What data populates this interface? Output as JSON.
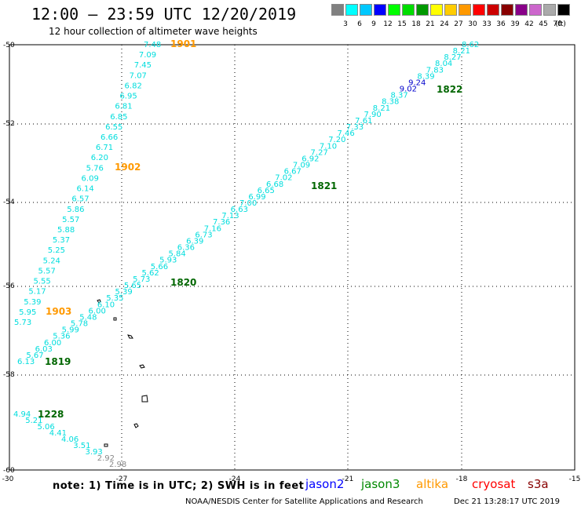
{
  "title": "12:00 – 23:59 UTC 12/20/2019",
  "subtitle": "12 hour collection of altimeter wave heights",
  "scale": {
    "unit": "(ft)",
    "colors": [
      "#808080",
      "#00ffff",
      "#00c8ff",
      "#0000ff",
      "#00ff00",
      "#00dd00",
      "#009900",
      "#ffff00",
      "#ffcc00",
      "#ff9900",
      "#ff0000",
      "#cc0000",
      "#880000",
      "#880088",
      "#cc66cc",
      "#aaaaaa",
      "#000000"
    ],
    "ticks": [
      "3",
      "6",
      "9",
      "12",
      "15",
      "18",
      "21",
      "24",
      "27",
      "30",
      "33",
      "36",
      "39",
      "42",
      "45",
      "70"
    ]
  },
  "axes": {
    "lon_ticks": [
      "-30",
      "-27",
      "-24",
      "-21",
      "-18",
      "-15"
    ],
    "lat_ticks": [
      "-50",
      "-52",
      "-54",
      "-56",
      "-58",
      "-60"
    ]
  },
  "tracks": [
    {
      "name": "1901",
      "label_color": "#ff9900",
      "color": "#00ffff",
      "values": [
        "7.48",
        "7.09",
        "7.45",
        "7.07",
        "6.82",
        "6.95",
        "6.81",
        "6.85",
        "6.55",
        "6.66",
        "6.71",
        "6.20",
        "5.76",
        "6.09",
        "6.14",
        "6.57",
        "5.86",
        "5.57",
        "5.88",
        "5.37",
        "5.25",
        "5.24",
        "5.57",
        "5.55",
        "5.17",
        "5.39",
        "5.95",
        "5.73"
      ]
    },
    {
      "name": "1822",
      "label_color": "#006600",
      "color": "#00ffff",
      "values": [
        "8.62",
        "8.21",
        "8.27",
        "8.04",
        "7.83",
        "8.39",
        "9.24",
        "9.02",
        "8.37",
        "8.38",
        "8.21",
        "7.90",
        "7.61",
        "7.33",
        "7.46",
        "7.20",
        "7.10",
        "7.27",
        "6.92",
        "7.09",
        "6.67",
        "7.02",
        "6.68",
        "6.65",
        "6.99",
        "7.00",
        "6.63",
        "7.13",
        "7.36",
        "7.16",
        "6.73",
        "6.39",
        "6.36",
        "5.84",
        "5.93",
        "5.66",
        "5.62",
        "5.73",
        "5.65",
        "5.39",
        "5.35",
        "6.10",
        "6.00",
        "5.48",
        "5.78",
        "5.99",
        "5.36",
        "6.00",
        "6.03",
        "5.67",
        "6.13"
      ]
    },
    {
      "name": "1228",
      "label_color": "#006600",
      "color": "#00ffff",
      "values": [
        "4.94",
        "5.21",
        "5.06",
        "4.41",
        "4.06",
        "3.51",
        "3.93",
        "2.92",
        "2.98"
      ]
    }
  ],
  "track_labels": [
    {
      "text": "1901",
      "color": "#ff9900"
    },
    {
      "text": "1902",
      "color": "#ff9900"
    },
    {
      "text": "1903",
      "color": "#ff9900"
    },
    {
      "text": "1822",
      "color": "#006600"
    },
    {
      "text": "1821",
      "color": "#006600"
    },
    {
      "text": "1820",
      "color": "#006600"
    },
    {
      "text": "1819",
      "color": "#006600"
    },
    {
      "text": "1228",
      "color": "#006600"
    }
  ],
  "footer": {
    "note": "note:  1) Time is in UTC;  2) SWH is in feet",
    "satellites": [
      {
        "name": "jason2",
        "color": "#0000ff"
      },
      {
        "name": "jason3",
        "color": "#008800"
      },
      {
        "name": "altika",
        "color": "#ff9900"
      },
      {
        "name": "cryosat",
        "color": "#ff0000"
      },
      {
        "name": "s3a",
        "color": "#880000"
      }
    ],
    "credit": "NOAA/NESDIS Center for Satellite Applications and Research",
    "timestamp": "Dec 21 13:28:17 UTC 2019"
  }
}
